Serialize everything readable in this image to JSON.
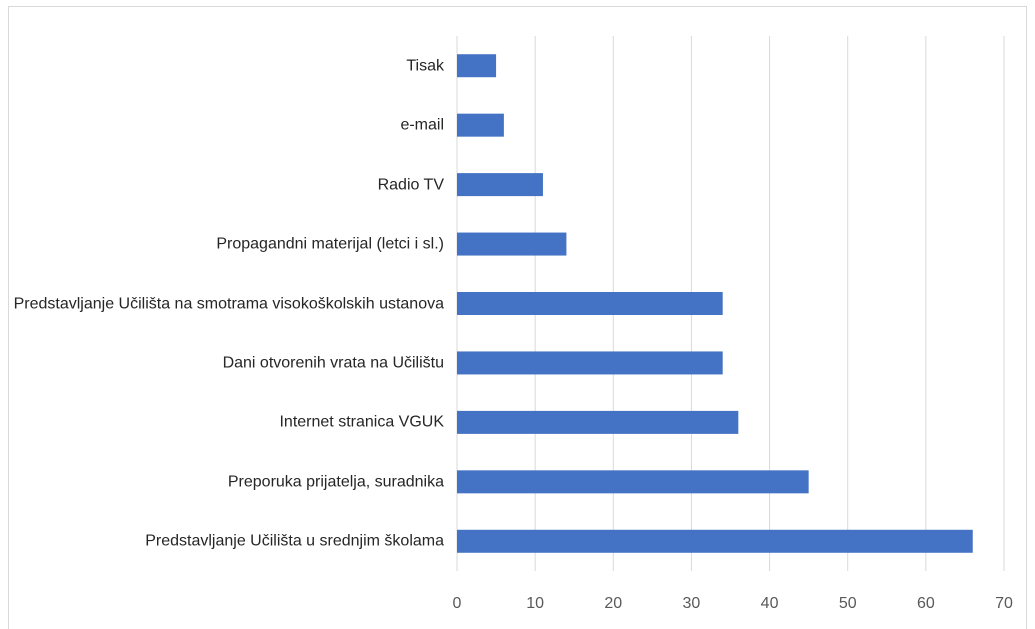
{
  "chart_data": {
    "type": "barh",
    "categories": [
      "Tisak",
      "e-mail",
      "Radio TV",
      "Propagandni materijal (letci i sl.)",
      "Predstavljanje Učilišta na smotrama visokoškolskih ustanova",
      "Dani otvorenih vrata na Učilištu",
      "Internet stranica VGUK",
      "Preporuka prijatelja, suradnika",
      "Predstavljanje Učilišta u srednjim školama"
    ],
    "values": [
      5,
      6,
      11,
      14,
      34,
      34,
      36,
      45,
      66
    ],
    "color": "#4472c4",
    "xlim": [
      0,
      70
    ],
    "xticks": [
      0,
      10,
      20,
      30,
      40,
      50,
      60,
      70
    ],
    "grid": true
  }
}
